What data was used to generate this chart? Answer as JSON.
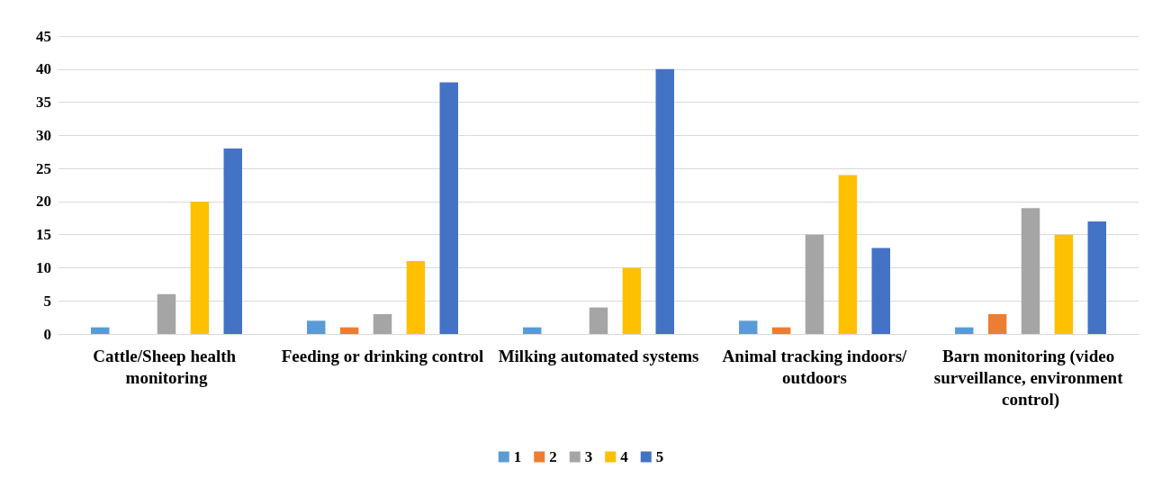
{
  "chart_data": {
    "type": "bar",
    "categories": [
      "Cattle/Sheep health monitoring",
      "Feeding or drinking control",
      "Milking automated systems",
      "Animal tracking indoors/outdoors",
      "Barn monitoring (video surveillance, environment control)"
    ],
    "series": [
      {
        "name": "1",
        "color": "#5b9bd5",
        "values": [
          1,
          2,
          1,
          2,
          1
        ]
      },
      {
        "name": "2",
        "color": "#ed7d31",
        "values": [
          0,
          1,
          0,
          1,
          3
        ]
      },
      {
        "name": "3",
        "color": "#a5a5a5",
        "values": [
          6,
          3,
          4,
          15,
          19
        ]
      },
      {
        "name": "4",
        "color": "#ffc000",
        "values": [
          20,
          11,
          10,
          24,
          15
        ]
      },
      {
        "name": "5",
        "color": "#4472c4",
        "values": [
          28,
          38,
          40,
          13,
          17
        ]
      }
    ],
    "ylim": [
      0,
      45
    ],
    "yticks": [
      0,
      5,
      10,
      15,
      20,
      25,
      30,
      35,
      40,
      45
    ],
    "grid": "y",
    "legend": "bottom"
  }
}
